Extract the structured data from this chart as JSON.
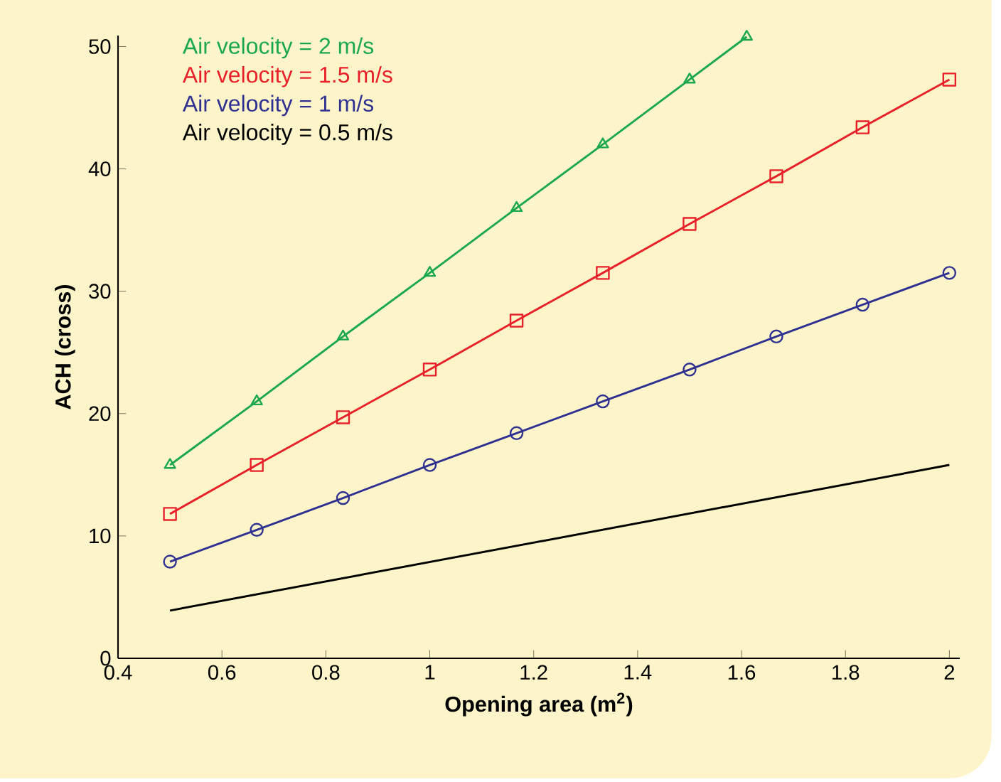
{
  "chart_data": {
    "type": "line",
    "xlabel": "Opening area (m$^{2}$)",
    "ylabel": "ACH (cross)",
    "xlim": [
      0.4,
      2.02
    ],
    "ylim": [
      0,
      50.9
    ],
    "xticks": [
      0.4,
      0.6,
      0.8,
      1,
      1.2,
      1.4,
      1.6,
      1.8,
      2
    ],
    "yticks": [
      0,
      10,
      20,
      30,
      40,
      50
    ],
    "grid": false,
    "legend": "top left",
    "line_style": "solid",
    "series": [
      {
        "name": "Air velocity = 2 m/s",
        "color": "#1aa84a",
        "marker": "triangle",
        "x": [
          0.5,
          0.667,
          0.833,
          1,
          1.167,
          1.333,
          1.5,
          1.61
        ],
        "values": [
          15.8,
          21.0,
          26.3,
          31.5,
          36.8,
          42.0,
          47.3,
          50.8
        ]
      },
      {
        "name": "Air velocity = 1.5 m/s",
        "color": "#e8202a",
        "marker": "square",
        "x": [
          0.5,
          0.667,
          0.833,
          1,
          1.167,
          1.333,
          1.5,
          1.667,
          1.833,
          2
        ],
        "values": [
          11.8,
          15.8,
          19.7,
          23.6,
          27.6,
          31.5,
          35.5,
          39.4,
          43.4,
          47.3
        ]
      },
      {
        "name": "Air velocity = 1 m/s",
        "color": "#2e3192",
        "marker": "circle",
        "x": [
          0.5,
          0.667,
          0.833,
          1,
          1.167,
          1.333,
          1.5,
          1.667,
          1.833,
          2
        ],
        "values": [
          7.9,
          10.5,
          13.1,
          15.8,
          18.4,
          21.0,
          23.6,
          26.3,
          28.9,
          31.5
        ]
      },
      {
        "name": "Air velocity = 0.5 m/s",
        "color": "#000000",
        "marker": "none",
        "x": [
          0.5,
          2
        ],
        "values": [
          3.9,
          15.8
        ]
      }
    ]
  }
}
